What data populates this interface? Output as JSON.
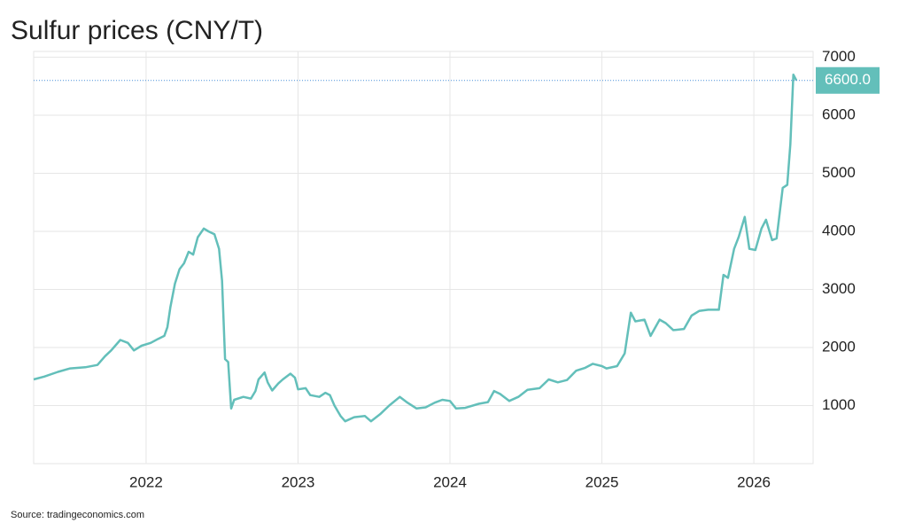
{
  "chart_data": {
    "type": "line",
    "title": "Sulfur prices (CNY/T)",
    "source": "Source: tradingeconomics.com",
    "x": [
      2021.26,
      2021.33,
      2021.42,
      2021.5,
      2021.6,
      2021.68,
      2021.73,
      2021.77,
      2021.83,
      2021.88,
      2021.92,
      2021.97,
      2022.03,
      2022.08,
      2022.12,
      2022.14,
      2022.16,
      2022.19,
      2022.22,
      2022.25,
      2022.28,
      2022.31,
      2022.34,
      2022.38,
      2022.41,
      2022.45,
      2022.48,
      2022.5,
      2022.52,
      2022.54,
      2022.56,
      2022.58,
      2022.64,
      2022.69,
      2022.72,
      2022.74,
      2022.78,
      2022.8,
      2022.83,
      2022.87,
      2022.9,
      2022.95,
      2022.98,
      2023.0,
      2023.05,
      2023.08,
      2023.14,
      2023.18,
      2023.21,
      2023.24,
      2023.28,
      2023.31,
      2023.37,
      2023.44,
      2023.48,
      2023.54,
      2023.6,
      2023.67,
      2023.72,
      2023.78,
      2023.84,
      2023.9,
      2023.95,
      2024.0,
      2024.04,
      2024.1,
      2024.19,
      2024.25,
      2024.29,
      2024.33,
      2024.39,
      2024.45,
      2024.51,
      2024.59,
      2024.65,
      2024.71,
      2024.77,
      2024.83,
      2024.89,
      2024.94,
      2025.0,
      2025.03,
      2025.1,
      2025.15,
      2025.19,
      2025.22,
      2025.28,
      2025.32,
      2025.38,
      2025.42,
      2025.47,
      2025.54,
      2025.59,
      2025.64,
      2025.7,
      2025.77,
      2025.8,
      2025.83,
      2025.87,
      2025.9,
      2025.94,
      2025.97,
      2026.01,
      2026.05,
      2026.08,
      2026.12,
      2026.15,
      2026.19,
      2026.22,
      2026.24,
      2026.26,
      2026.28
    ],
    "series": [
      {
        "name": "Sulfur",
        "color": "#63bfba",
        "values": [
          1450,
          1500,
          1580,
          1640,
          1660,
          1700,
          1850,
          1950,
          2130,
          2080,
          1950,
          2030,
          2080,
          2150,
          2200,
          2350,
          2700,
          3100,
          3350,
          3450,
          3650,
          3600,
          3900,
          4050,
          4000,
          3950,
          3700,
          3150,
          1800,
          1750,
          950,
          1100,
          1150,
          1120,
          1250,
          1450,
          1570,
          1400,
          1260,
          1380,
          1450,
          1550,
          1480,
          1280,
          1300,
          1180,
          1150,
          1220,
          1180,
          1000,
          820,
          730,
          800,
          820,
          730,
          850,
          1000,
          1150,
          1050,
          950,
          970,
          1050,
          1100,
          1080,
          950,
          960,
          1030,
          1060,
          1250,
          1200,
          1080,
          1150,
          1270,
          1300,
          1450,
          1400,
          1440,
          1600,
          1650,
          1720,
          1680,
          1640,
          1680,
          1900,
          2600,
          2450,
          2480,
          2200,
          2480,
          2420,
          2300,
          2320,
          2550,
          2630,
          2650,
          2650,
          3250,
          3200,
          3700,
          3900,
          4250,
          3700,
          3680,
          4050,
          4200,
          3850,
          3880,
          4750,
          4800,
          5500,
          6700,
          6600
        ]
      }
    ],
    "last_label": {
      "value": 6600,
      "label": "6600.0"
    },
    "xlim": [
      2021.26,
      2026.39
    ],
    "xticks": [
      2022,
      2023,
      2024,
      2025,
      2026
    ],
    "ylim": [
      0,
      7100
    ],
    "yticks": [
      1000,
      2000,
      3000,
      4000,
      5000,
      6000,
      7000
    ],
    "grid": true
  }
}
